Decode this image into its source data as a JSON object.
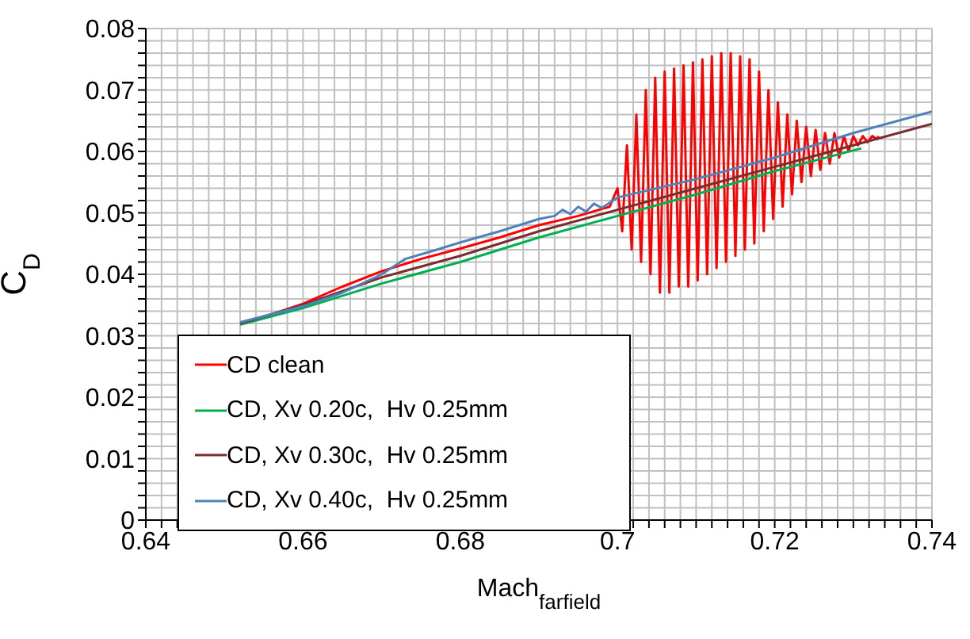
{
  "chart_data": {
    "type": "line",
    "xlabel": "Mach$_{farfield}$",
    "ylabel": "C$_{D}$",
    "xlim": [
      0.64,
      0.74
    ],
    "ylim": [
      0,
      0.08
    ],
    "xticks": [
      0.64,
      {
        "value": 0.642,
        "label": null
      },
      {
        "value": 0.644,
        "label": null
      },
      {
        "value": 0.646,
        "label": null
      },
      {
        "value": 0.648,
        "label": null
      },
      {
        "value": 0.65,
        "label": null
      },
      {
        "value": 0.652,
        "label": null
      },
      {
        "value": 0.654,
        "label": null
      },
      {
        "value": 0.656,
        "label": null
      },
      {
        "value": 0.658,
        "label": null
      },
      0.66,
      {
        "value": 0.662,
        "label": null
      },
      {
        "value": 0.664,
        "label": null
      },
      {
        "value": 0.666,
        "label": null
      },
      {
        "value": 0.668,
        "label": null
      },
      {
        "value": 0.67,
        "label": null
      },
      {
        "value": 0.672,
        "label": null
      },
      {
        "value": 0.674,
        "label": null
      },
      {
        "value": 0.676,
        "label": null
      },
      {
        "value": 0.678,
        "label": null
      },
      0.68,
      {
        "value": 0.682,
        "label": null
      },
      {
        "value": 0.684,
        "label": null
      },
      {
        "value": 0.686,
        "label": null
      },
      {
        "value": 0.688,
        "label": null
      },
      {
        "value": 0.69,
        "label": null
      },
      {
        "value": 0.692,
        "label": null
      },
      {
        "value": 0.694,
        "label": null
      },
      {
        "value": 0.696,
        "label": null
      },
      {
        "value": 0.698,
        "label": null
      },
      0.7,
      {
        "value": 0.702,
        "label": null
      },
      {
        "value": 0.704,
        "label": null
      },
      {
        "value": 0.706,
        "label": null
      },
      {
        "value": 0.708,
        "label": null
      },
      {
        "value": 0.71,
        "label": null
      },
      {
        "value": 0.712,
        "label": null
      },
      {
        "value": 0.714,
        "label": null
      },
      {
        "value": 0.716,
        "label": null
      },
      {
        "value": 0.718,
        "label": null
      },
      0.72,
      {
        "value": 0.722,
        "label": null
      },
      {
        "value": 0.724,
        "label": null
      },
      {
        "value": 0.726,
        "label": null
      },
      {
        "value": 0.728,
        "label": null
      },
      {
        "value": 0.73,
        "label": null
      },
      {
        "value": 0.732,
        "label": null
      },
      {
        "value": 0.734,
        "label": null
      },
      {
        "value": 0.736,
        "label": null
      },
      {
        "value": 0.738,
        "label": null
      },
      0.74
    ],
    "yticks": [
      0,
      {
        "value": 0.002,
        "label": null
      },
      {
        "value": 0.004,
        "label": null
      },
      {
        "value": 0.006,
        "label": null
      },
      {
        "value": 0.008,
        "label": null
      },
      0.01,
      {
        "value": 0.012,
        "label": null
      },
      {
        "value": 0.014,
        "label": null
      },
      {
        "value": 0.016,
        "label": null
      },
      {
        "value": 0.018,
        "label": null
      },
      0.02,
      {
        "value": 0.022,
        "label": null
      },
      {
        "value": 0.024,
        "label": null
      },
      {
        "value": 0.026,
        "label": null
      },
      {
        "value": 0.028,
        "label": null
      },
      0.03,
      {
        "value": 0.032,
        "label": null
      },
      {
        "value": 0.034,
        "label": null
      },
      {
        "value": 0.036,
        "label": null
      },
      {
        "value": 0.038,
        "label": null
      },
      0.04,
      {
        "value": 0.042,
        "label": null
      },
      {
        "value": 0.044,
        "label": null
      },
      {
        "value": 0.046,
        "label": null
      },
      {
        "value": 0.048,
        "label": null
      },
      0.05,
      {
        "value": 0.052,
        "label": null
      },
      {
        "value": 0.054,
        "label": null
      },
      {
        "value": 0.056,
        "label": null
      },
      {
        "value": 0.058,
        "label": null
      },
      0.06,
      {
        "value": 0.062,
        "label": null
      },
      {
        "value": 0.064,
        "label": null
      },
      {
        "value": 0.066,
        "label": null
      },
      {
        "value": 0.068,
        "label": null
      },
      0.07,
      {
        "value": 0.072,
        "label": null
      },
      {
        "value": 0.074,
        "label": null
      },
      {
        "value": 0.076,
        "label": null
      },
      {
        "value": 0.078,
        "label": null
      },
      0.08
    ],
    "grid": true,
    "legend": "bottom left",
    "marker": "none",
    "line_style": "solid",
    "series": [
      {
        "name": "CD clean",
        "color": "#ff0000",
        "x": [
          0.652,
          0.656,
          0.66,
          0.665,
          0.67,
          0.675,
          0.68,
          0.685,
          0.69,
          0.695,
          0.699,
          0.7,
          0.7006,
          0.7012,
          0.7018,
          0.7024,
          0.703,
          0.7036,
          0.7042,
          0.7048,
          0.7054,
          0.706,
          0.7066,
          0.7072,
          0.7078,
          0.7084,
          0.709,
          0.7096,
          0.7102,
          0.7108,
          0.7114,
          0.712,
          0.7126,
          0.7132,
          0.7138,
          0.7144,
          0.715,
          0.7156,
          0.7162,
          0.7168,
          0.7174,
          0.718,
          0.7186,
          0.7192,
          0.7198,
          0.7204,
          0.721,
          0.7216,
          0.7222,
          0.7228,
          0.7234,
          0.724,
          0.7246,
          0.7252,
          0.7258,
          0.7264,
          0.727,
          0.7276,
          0.7282,
          0.7288,
          0.7294,
          0.73,
          0.7306,
          0.7312,
          0.7318,
          0.7324,
          0.733,
          0.7332
        ],
        "values": [
          0.032,
          0.0335,
          0.0352,
          0.038,
          0.0405,
          0.0425,
          0.0442,
          0.046,
          0.048,
          0.0495,
          0.051,
          0.054,
          0.047,
          0.061,
          0.044,
          0.066,
          0.042,
          0.07,
          0.04,
          0.072,
          0.037,
          0.073,
          0.037,
          0.0735,
          0.038,
          0.074,
          0.038,
          0.0745,
          0.039,
          0.075,
          0.04,
          0.0755,
          0.041,
          0.076,
          0.042,
          0.076,
          0.043,
          0.0755,
          0.044,
          0.075,
          0.045,
          0.073,
          0.047,
          0.07,
          0.049,
          0.068,
          0.051,
          0.066,
          0.053,
          0.065,
          0.055,
          0.064,
          0.056,
          0.0635,
          0.057,
          0.063,
          0.058,
          0.063,
          0.059,
          0.0625,
          0.06,
          0.0625,
          0.061,
          0.0625,
          0.0615,
          0.0625,
          0.062,
          0.0625
        ]
      },
      {
        "name": "CD, Xv 0.20c,  Hv 0.25mm",
        "color": "#00b050",
        "x": [
          0.652,
          0.66,
          0.67,
          0.68,
          0.69,
          0.7,
          0.71,
          0.72,
          0.731
        ],
        "values": [
          0.0318,
          0.0345,
          0.0385,
          0.042,
          0.046,
          0.0495,
          0.053,
          0.0568,
          0.0605
        ]
      },
      {
        "name": "CD, Xv 0.30c,  Hv 0.25mm",
        "color": "#7b2c2c",
        "x": [
          0.652,
          0.66,
          0.67,
          0.68,
          0.69,
          0.7,
          0.71,
          0.72,
          0.73,
          0.74
        ],
        "values": [
          0.032,
          0.035,
          0.0395,
          0.043,
          0.047,
          0.0505,
          0.054,
          0.0575,
          0.061,
          0.0645
        ]
      },
      {
        "name": "CD, Xv 0.40c,  Hv 0.25mm",
        "color": "#4f81bd",
        "x": [
          0.652,
          0.66,
          0.665,
          0.67,
          0.673,
          0.677,
          0.68,
          0.685,
          0.69,
          0.692,
          0.693,
          0.694,
          0.695,
          0.696,
          0.697,
          0.698,
          0.7,
          0.71,
          0.72,
          0.73,
          0.74
        ],
        "values": [
          0.0322,
          0.0348,
          0.037,
          0.04,
          0.0425,
          0.044,
          0.0452,
          0.047,
          0.049,
          0.0495,
          0.0505,
          0.0498,
          0.051,
          0.0502,
          0.0515,
          0.0508,
          0.0525,
          0.0555,
          0.059,
          0.063,
          0.0665
        ]
      }
    ]
  }
}
